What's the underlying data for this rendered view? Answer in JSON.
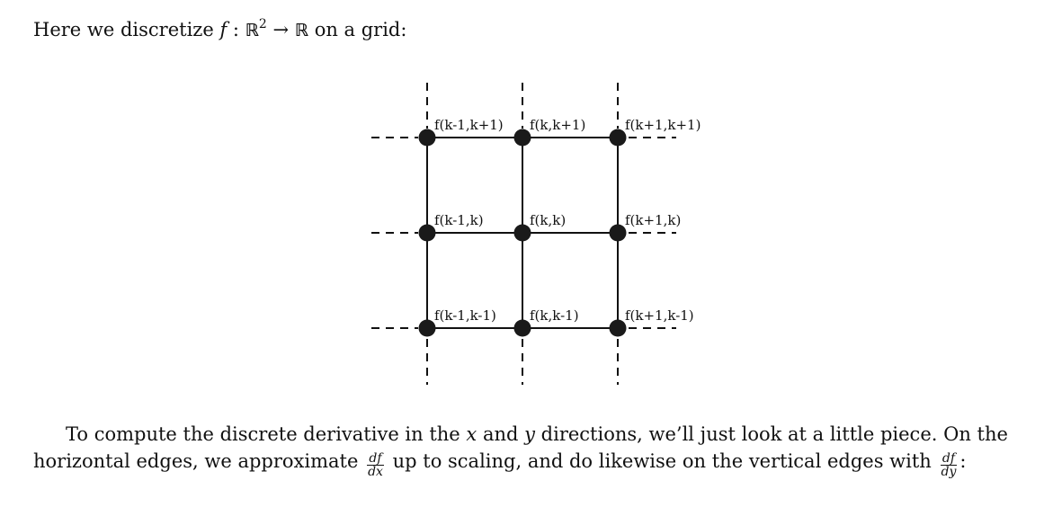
{
  "intro": {
    "before": "Here we discretize ",
    "f": "f",
    "colon": " : ",
    "domain": "ℝ",
    "power": "2",
    "arrow": " → ",
    "codomain": "ℝ",
    "after": " on a grid:"
  },
  "figure": {
    "nodes": [
      {
        "label": "f(k-1,k+1)",
        "col": 0,
        "row": 0
      },
      {
        "label": "f(k,k+1)",
        "col": 1,
        "row": 0
      },
      {
        "label": "f(k+1,k+1)",
        "col": 2,
        "row": 0
      },
      {
        "label": "f(k-1,k)",
        "col": 0,
        "row": 1
      },
      {
        "label": "f(k,k)",
        "col": 1,
        "row": 1
      },
      {
        "label": "f(k+1,k)",
        "col": 2,
        "row": 1
      },
      {
        "label": "f(k-1,k-1)",
        "col": 0,
        "row": 2
      },
      {
        "label": "f(k,k-1)",
        "col": 1,
        "row": 2
      },
      {
        "label": "f(k+1,k-1)",
        "col": 2,
        "row": 2
      }
    ]
  },
  "paragraph": {
    "line1_a": "To compute the discrete derivative in the ",
    "x": "x",
    "line1_b": " and ",
    "y": "y",
    "line1_c": " directions, we’ll just look at a little piece.  On the",
    "line2_a": "horizontal edges, we approximate ",
    "dfdx_num": "df",
    "dfdx_den": "dx",
    "line2_b": " up to scaling, and do likewise on the vertical edges with ",
    "dfdy_num": "df",
    "dfdy_den": "dy",
    "line2_c": ":"
  }
}
